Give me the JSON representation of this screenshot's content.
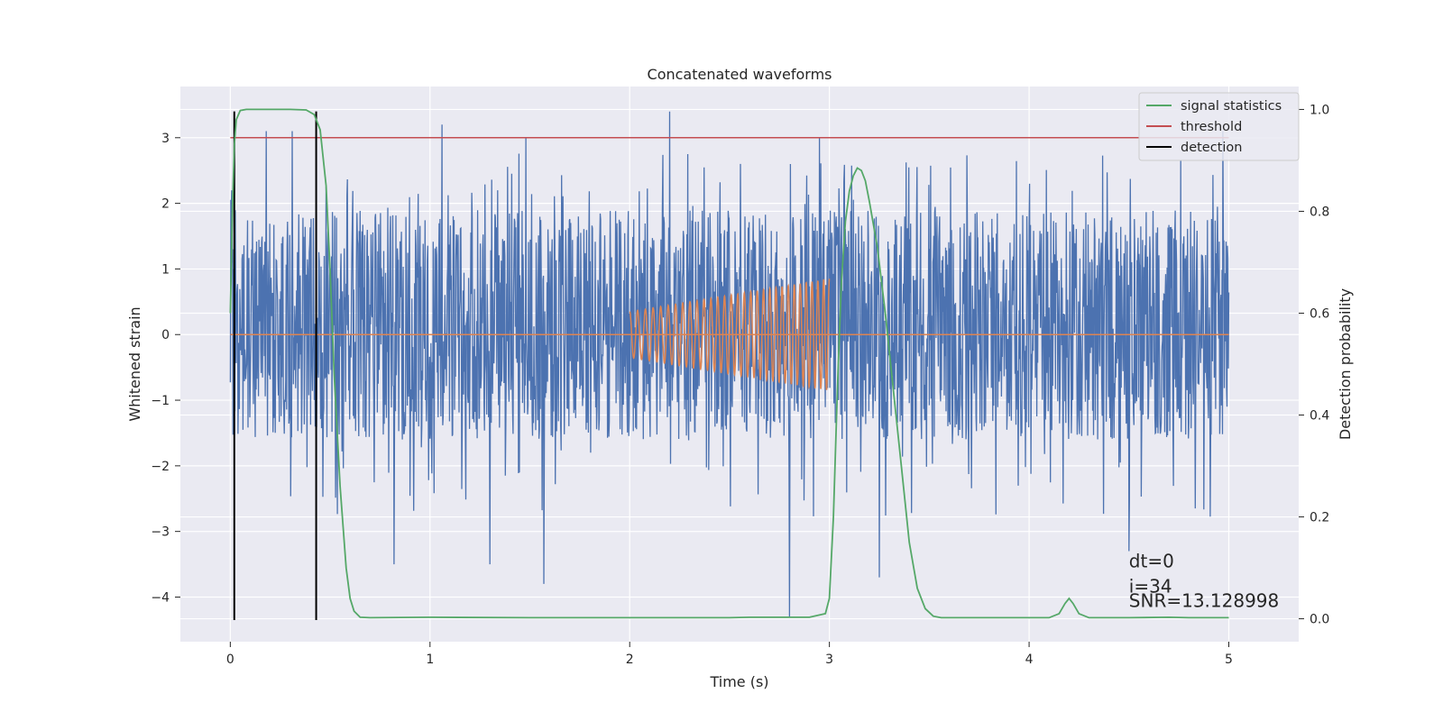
{
  "chart_data": {
    "type": "line",
    "title": "Concatenated waveforms",
    "xlabel": "Time (s)",
    "ylabel": "Whitened strain",
    "ylabel_right": "Detection probability",
    "xlim": [
      -0.25,
      5.35
    ],
    "ylim": [
      -4.68,
      3.78
    ],
    "ylim_right": [
      -0.045,
      1.045
    ],
    "xticks": [
      0,
      1,
      2,
      3,
      4,
      5
    ],
    "xtick_labels": [
      "0",
      "1",
      "2",
      "3",
      "4",
      "5"
    ],
    "yticks": [
      -4,
      -3,
      -2,
      -1,
      0,
      1,
      2,
      3
    ],
    "ytick_labels": [
      "−4",
      "−3",
      "−2",
      "−1",
      "0",
      "1",
      "2",
      "3"
    ],
    "yticks_right": [
      0.0,
      0.2,
      0.4,
      0.6,
      0.8,
      1.0
    ],
    "ytick_labels_right": [
      "0.0",
      "0.2",
      "0.4",
      "0.6",
      "0.8",
      "1.0"
    ],
    "grid": true,
    "legend_position": "top-right",
    "noise": {
      "color": "#4c72b0",
      "x_range": [
        0,
        5
      ],
      "typical_range": [
        -1.6,
        1.9
      ],
      "extremes": [
        {
          "x": 0.02,
          "y": 3.2
        },
        {
          "x": 0.18,
          "y": 3.1
        },
        {
          "x": 0.31,
          "y": 3.1
        },
        {
          "x": 1.06,
          "y": 3.2
        },
        {
          "x": 1.48,
          "y": 3.0
        },
        {
          "x": 2.2,
          "y": 3.4
        },
        {
          "x": 2.8,
          "y": -4.3
        },
        {
          "x": 2.95,
          "y": 3.0
        },
        {
          "x": 1.57,
          "y": -3.8
        },
        {
          "x": 0.82,
          "y": -3.5
        },
        {
          "x": 1.3,
          "y": -3.5
        },
        {
          "x": 3.25,
          "y": -3.7
        },
        {
          "x": 4.5,
          "y": -3.3
        },
        {
          "x": 4.97,
          "y": 3.1
        }
      ]
    },
    "chirp": {
      "color": "#dd8452",
      "x_range": [
        2.0,
        3.0
      ],
      "amplitude_start": 0.35,
      "amplitude_end": 0.85,
      "baseline_x_range": [
        0,
        5
      ],
      "baseline_y": 0
    },
    "series": [
      {
        "name": "signal statistics",
        "axis": "right",
        "color": "#55a868",
        "x": [
          0.0,
          0.01,
          0.02,
          0.03,
          0.05,
          0.08,
          0.1,
          0.2,
          0.3,
          0.38,
          0.42,
          0.45,
          0.48,
          0.5,
          0.52,
          0.55,
          0.58,
          0.6,
          0.62,
          0.65,
          0.7,
          1.0,
          1.5,
          2.0,
          2.5,
          2.6,
          2.9,
          2.98,
          3.0,
          3.02,
          3.04,
          3.06,
          3.08,
          3.1,
          3.12,
          3.14,
          3.16,
          3.18,
          3.2,
          3.24,
          3.28,
          3.32,
          3.36,
          3.4,
          3.44,
          3.48,
          3.52,
          3.56,
          3.6,
          4.0,
          4.1,
          4.15,
          4.18,
          4.2,
          4.22,
          4.25,
          4.3,
          4.5,
          4.7,
          4.8,
          5.0
        ],
        "y": [
          0.6,
          0.8,
          0.93,
          0.98,
          0.998,
          1.0,
          1.0,
          1.0,
          1.0,
          0.999,
          0.99,
          0.96,
          0.85,
          0.68,
          0.48,
          0.26,
          0.1,
          0.04,
          0.015,
          0.003,
          0.002,
          0.003,
          0.002,
          0.002,
          0.002,
          0.003,
          0.003,
          0.01,
          0.04,
          0.2,
          0.45,
          0.66,
          0.78,
          0.84,
          0.87,
          0.885,
          0.88,
          0.86,
          0.82,
          0.73,
          0.6,
          0.45,
          0.3,
          0.15,
          0.06,
          0.02,
          0.005,
          0.002,
          0.002,
          0.002,
          0.002,
          0.01,
          0.03,
          0.04,
          0.03,
          0.01,
          0.002,
          0.002,
          0.003,
          0.002,
          0.002
        ]
      },
      {
        "name": "threshold",
        "axis": "left",
        "color": "#c44e52",
        "x": [
          0,
          5
        ],
        "y": [
          3.0,
          3.0
        ]
      },
      {
        "name": "detection",
        "axis": "left",
        "color": "#000000",
        "vlines": [
          0.02,
          0.43
        ],
        "y_range": [
          -4.35,
          3.4
        ]
      }
    ],
    "annotations": [
      {
        "text": "dt=0",
        "x": 4.5,
        "y": -3.55
      },
      {
        "text": "i=34",
        "x": 4.5,
        "y": -3.93
      },
      {
        "text": "SNR=13.128998",
        "x": 4.5,
        "y": -4.15
      }
    ]
  }
}
